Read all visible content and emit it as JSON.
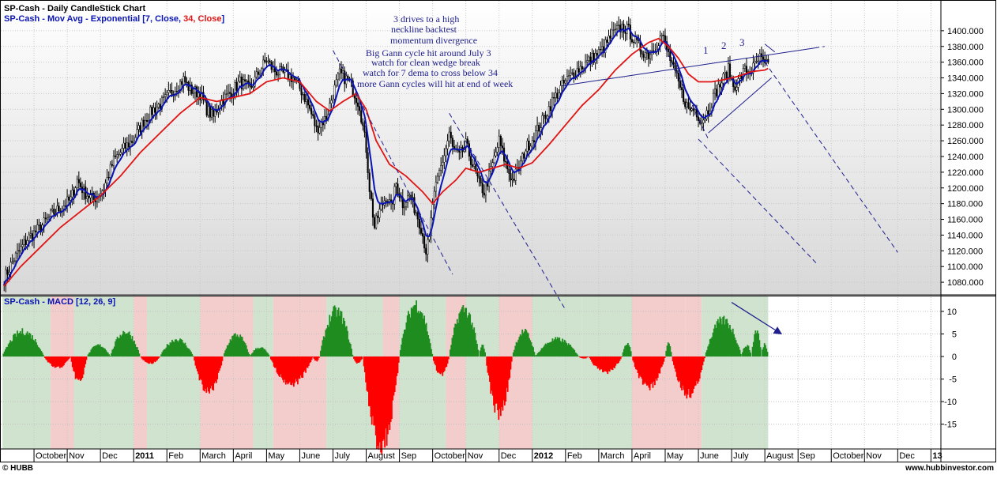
{
  "header": {
    "line1": "SP-Cash - Daily CandleStick Chart",
    "line2_prefix": "SP-Cash - Mov Avg - Exponential [7, Close, ",
    "line2_red": "34, Close",
    "line2_suffix": "]"
  },
  "annotations": [
    "3 drives to a high",
    "neckline backtest",
    "momentum divergence",
    "Big Gann cycle hit  around July 3",
    "watch for clean wedge break",
    "watch for 7 dema to cross below 34",
    "more Gann cycles will  hit at end of week"
  ],
  "wave_labels": [
    "1",
    "2",
    "3"
  ],
  "footer": {
    "left": "© HUBB",
    "right": "www.hubbinvestor.com"
  },
  "colors": {
    "ema_fast": "#0a14b4",
    "ema_slow": "#e11414",
    "macd_pos": "#1e8c1e",
    "macd_neg": "#ff0000",
    "shade_green": "#cfe3cf",
    "shade_red": "#f3cccc",
    "candle": "#000000"
  },
  "chart_data": [
    {
      "type": "line",
      "title": "SP-Cash - Daily CandleStick Chart",
      "subtitle": "SP-Cash - Mov Avg - Exponential [7, Close, 34, Close]",
      "ylim": [
        1065,
        1425
      ],
      "yticks": [
        1080,
        1100,
        1120,
        1140,
        1160,
        1180,
        1200,
        1220,
        1240,
        1260,
        1280,
        1300,
        1320,
        1340,
        1360,
        1380,
        1400
      ],
      "grid": true,
      "x_axis_labels": [
        {
          "label": "October",
          "m": 9
        },
        {
          "label": "Nov",
          "m": 10
        },
        {
          "label": "Dec",
          "m": 11
        },
        {
          "label": "2011",
          "m": 12
        },
        {
          "label": "Feb",
          "m": 13
        },
        {
          "label": "March",
          "m": 14
        },
        {
          "label": "April",
          "m": 15
        },
        {
          "label": "May",
          "m": 16
        },
        {
          "label": "June",
          "m": 17
        },
        {
          "label": "July",
          "m": 18
        },
        {
          "label": "August",
          "m": 19
        },
        {
          "label": "Sep",
          "m": 20
        },
        {
          "label": "October",
          "m": 21
        },
        {
          "label": "Nov",
          "m": 22
        },
        {
          "label": "Dec",
          "m": 23
        },
        {
          "label": "2012",
          "m": 24
        },
        {
          "label": "Feb",
          "m": 25
        },
        {
          "label": "March",
          "m": 26
        },
        {
          "label": "April",
          "m": 27
        },
        {
          "label": "May",
          "m": 28
        },
        {
          "label": "June",
          "m": 29
        },
        {
          "label": "July",
          "m": 30
        },
        {
          "label": "August",
          "m": 31
        },
        {
          "label": "Sep",
          "m": 32
        },
        {
          "label": "October",
          "m": 33
        },
        {
          "label": "Nov",
          "m": 34
        },
        {
          "label": "Dec",
          "m": 35
        },
        {
          "label": "13",
          "m": 36
        }
      ],
      "price_path": [
        [
          8.1,
          1085
        ],
        [
          8.4,
          1110
        ],
        [
          8.8,
          1135
        ],
        [
          9.2,
          1150
        ],
        [
          9.5,
          1165
        ],
        [
          9.8,
          1175
        ],
        [
          10.1,
          1185
        ],
        [
          10.3,
          1210
        ],
        [
          10.5,
          1195
        ],
        [
          10.8,
          1185
        ],
        [
          11.1,
          1200
        ],
        [
          11.4,
          1235
        ],
        [
          11.7,
          1250
        ],
        [
          12.0,
          1262
        ],
        [
          12.3,
          1285
        ],
        [
          12.6,
          1300
        ],
        [
          12.9,
          1310
        ],
        [
          13.2,
          1325
        ],
        [
          13.5,
          1338
        ],
        [
          13.7,
          1325
        ],
        [
          14.0,
          1320
        ],
        [
          14.2,
          1300
        ],
        [
          14.4,
          1290
        ],
        [
          14.6,
          1310
        ],
        [
          14.9,
          1320
        ],
        [
          15.2,
          1335
        ],
        [
          15.5,
          1325
        ],
        [
          15.8,
          1350
        ],
        [
          16.0,
          1363
        ],
        [
          16.2,
          1350
        ],
        [
          16.5,
          1345
        ],
        [
          16.8,
          1340
        ],
        [
          17.1,
          1320
        ],
        [
          17.3,
          1300
        ],
        [
          17.5,
          1275
        ],
        [
          17.8,
          1290
        ],
        [
          18.0,
          1320
        ],
        [
          18.2,
          1345
        ],
        [
          18.5,
          1335
        ],
        [
          18.8,
          1305
        ],
        [
          19.0,
          1250
        ],
        [
          19.1,
          1200
        ],
        [
          19.25,
          1150
        ],
        [
          19.4,
          1170
        ],
        [
          19.6,
          1190
        ],
        [
          19.75,
          1175
        ],
        [
          19.9,
          1205
        ],
        [
          20.1,
          1180
        ],
        [
          20.3,
          1190
        ],
        [
          20.5,
          1170
        ],
        [
          20.65,
          1150
        ],
        [
          20.8,
          1120
        ],
        [
          20.9,
          1135
        ],
        [
          21.0,
          1180
        ],
        [
          21.2,
          1220
        ],
        [
          21.4,
          1250
        ],
        [
          21.5,
          1270
        ],
        [
          21.6,
          1250
        ],
        [
          21.8,
          1240
        ],
        [
          22.0,
          1255
        ],
        [
          22.2,
          1230
        ],
        [
          22.4,
          1205
        ],
        [
          22.55,
          1195
        ],
        [
          22.7,
          1215
        ],
        [
          22.9,
          1245
        ],
        [
          23.0,
          1260
        ],
        [
          23.2,
          1230
        ],
        [
          23.4,
          1210
        ],
        [
          23.6,
          1225
        ],
        [
          23.8,
          1250
        ],
        [
          24.0,
          1262
        ],
        [
          24.3,
          1285
        ],
        [
          24.6,
          1310
        ],
        [
          24.9,
          1330
        ],
        [
          25.2,
          1345
        ],
        [
          25.5,
          1355
        ],
        [
          25.8,
          1365
        ],
        [
          26.1,
          1375
        ],
        [
          26.4,
          1395
        ],
        [
          26.7,
          1405
        ],
        [
          26.9,
          1400
        ],
        [
          27.1,
          1385
        ],
        [
          27.3,
          1375
        ],
        [
          27.5,
          1370
        ],
        [
          27.7,
          1380
        ],
        [
          27.9,
          1395
        ],
        [
          28.1,
          1370
        ],
        [
          28.3,
          1345
        ],
        [
          28.5,
          1320
        ],
        [
          28.7,
          1300
        ],
        [
          28.9,
          1300
        ],
        [
          29.1,
          1285
        ],
        [
          29.3,
          1300
        ],
        [
          29.5,
          1320
        ],
        [
          29.7,
          1335
        ],
        [
          29.9,
          1350
        ],
        [
          30.05,
          1330
        ],
        [
          30.2,
          1335
        ],
        [
          30.4,
          1350
        ],
        [
          30.55,
          1348
        ],
        [
          30.7,
          1355
        ],
        [
          30.85,
          1365
        ],
        [
          31.0,
          1355
        ],
        [
          31.1,
          1357
        ]
      ],
      "ema34_path": [
        [
          8.1,
          1075
        ],
        [
          8.6,
          1100
        ],
        [
          9.2,
          1125
        ],
        [
          9.8,
          1150
        ],
        [
          10.4,
          1170
        ],
        [
          11.0,
          1190
        ],
        [
          11.6,
          1215
        ],
        [
          12.2,
          1245
        ],
        [
          12.8,
          1270
        ],
        [
          13.4,
          1295
        ],
        [
          14.0,
          1315
        ],
        [
          14.5,
          1310
        ],
        [
          15.0,
          1315
        ],
        [
          15.5,
          1320
        ],
        [
          16.0,
          1335
        ],
        [
          16.5,
          1340
        ],
        [
          17.0,
          1335
        ],
        [
          17.5,
          1310
        ],
        [
          17.9,
          1298
        ],
        [
          18.3,
          1310
        ],
        [
          18.7,
          1320
        ],
        [
          19.0,
          1300
        ],
        [
          19.3,
          1260
        ],
        [
          19.7,
          1230
        ],
        [
          20.2,
          1215
        ],
        [
          20.7,
          1195
        ],
        [
          21.0,
          1180
        ],
        [
          21.3,
          1195
        ],
        [
          21.7,
          1210
        ],
        [
          22.0,
          1225
        ],
        [
          22.4,
          1220
        ],
        [
          22.8,
          1225
        ],
        [
          23.2,
          1230
        ],
        [
          23.6,
          1225
        ],
        [
          24.0,
          1232
        ],
        [
          24.5,
          1255
        ],
        [
          25.0,
          1280
        ],
        [
          25.5,
          1305
        ],
        [
          26.0,
          1325
        ],
        [
          26.5,
          1350
        ],
        [
          27.0,
          1370
        ],
        [
          27.5,
          1385
        ],
        [
          27.8,
          1390
        ],
        [
          28.1,
          1380
        ],
        [
          28.4,
          1365
        ],
        [
          28.7,
          1345
        ],
        [
          29.0,
          1335
        ],
        [
          29.4,
          1335
        ],
        [
          29.8,
          1338
        ],
        [
          30.2,
          1342
        ],
        [
          30.6,
          1348
        ],
        [
          31.0,
          1350
        ],
        [
          31.1,
          1352
        ]
      ],
      "overlay_lines": [
        {
          "p1": [
            18.0,
            1375
          ],
          "p2": [
            21.6,
            1090
          ],
          "dash": true
        },
        {
          "p1": [
            21.5,
            1295
          ],
          "p2": [
            25.0,
            1045
          ],
          "dash": true
        },
        {
          "p1": [
            28.0,
            1378
          ],
          "p2": [
            29.3,
            1262
          ],
          "dash": true
        },
        {
          "p1": [
            29.0,
            1262
          ],
          "p2": [
            32.6,
            1102
          ],
          "dash": true
        },
        {
          "p1": [
            31.0,
            1360
          ],
          "p2": [
            35.0,
            1118
          ],
          "dash": true
        },
        {
          "p1": [
            24.9,
            1330
          ],
          "p2": [
            32.5,
            1378
          ],
          "dash": false
        },
        {
          "p1": [
            32.5,
            1378
          ],
          "p2": [
            32.8,
            1380
          ],
          "dash": true
        },
        {
          "p1": [
            29.3,
            1270
          ],
          "p2": [
            31.2,
            1340
          ],
          "dash": false
        },
        {
          "p1": [
            31.0,
            1383
          ],
          "p2": [
            31.3,
            1373
          ],
          "dash": false
        }
      ]
    },
    {
      "type": "bar",
      "title": "SP-Cash - MACD [12, 26, 9]",
      "ylim": [
        -20.5,
        13.5
      ],
      "yticks": [
        -15,
        -10,
        -5,
        0,
        5,
        10
      ],
      "shading": [
        {
          "m0": 8.05,
          "m1": 9.5,
          "color": "green"
        },
        {
          "m0": 9.5,
          "m1": 10.2,
          "color": "red"
        },
        {
          "m0": 10.2,
          "m1": 12.0,
          "color": "green"
        },
        {
          "m0": 12.0,
          "m1": 12.4,
          "color": "red"
        },
        {
          "m0": 12.4,
          "m1": 14.0,
          "color": "green"
        },
        {
          "m0": 14.0,
          "m1": 15.6,
          "color": "red"
        },
        {
          "m0": 15.6,
          "m1": 16.2,
          "color": "green"
        },
        {
          "m0": 16.2,
          "m1": 17.8,
          "color": "red"
        },
        {
          "m0": 17.8,
          "m1": 19.5,
          "color": "green"
        },
        {
          "m0": 19.5,
          "m1": 20.0,
          "color": "red"
        },
        {
          "m0": 20.0,
          "m1": 21.4,
          "color": "green"
        },
        {
          "m0": 21.4,
          "m1": 22.0,
          "color": "red"
        },
        {
          "m0": 22.0,
          "m1": 23.0,
          "color": "green"
        },
        {
          "m0": 23.0,
          "m1": 24.0,
          "color": "red"
        },
        {
          "m0": 24.0,
          "m1": 25.5,
          "color": "green"
        },
        {
          "m0": 25.5,
          "m1": 27.0,
          "color": "green"
        },
        {
          "m0": 27.0,
          "m1": 28.0,
          "color": "red"
        },
        {
          "m0": 28.0,
          "m1": 28.6,
          "color": "red"
        },
        {
          "m0": 28.6,
          "m1": 29.1,
          "color": "red"
        },
        {
          "m0": 29.1,
          "m1": 31.1,
          "color": "green"
        }
      ],
      "histogram_humps": [
        {
          "m0": 8.05,
          "m1": 9.3,
          "peak": 5.5
        },
        {
          "m0": 9.3,
          "m1": 10.1,
          "peak": -2.5
        },
        {
          "m0": 10.1,
          "m1": 10.6,
          "peak": -5.5
        },
        {
          "m0": 10.6,
          "m1": 11.3,
          "peak": 2.5
        },
        {
          "m0": 11.3,
          "m1": 12.2,
          "peak": 5.5
        },
        {
          "m0": 12.2,
          "m1": 12.8,
          "peak": -1.5
        },
        {
          "m0": 12.8,
          "m1": 13.8,
          "peak": 3.8
        },
        {
          "m0": 13.8,
          "m1": 14.7,
          "peak": -7.5
        },
        {
          "m0": 14.7,
          "m1": 15.5,
          "peak": 4.8
        },
        {
          "m0": 15.5,
          "m1": 16.1,
          "peak": 2.0
        },
        {
          "m0": 16.1,
          "m1": 17.4,
          "peak": -6.0
        },
        {
          "m0": 17.4,
          "m1": 17.6,
          "peak": -1.0
        },
        {
          "m0": 17.6,
          "m1": 18.6,
          "peak": 10.0
        },
        {
          "m0": 18.6,
          "m1": 18.9,
          "peak": -1.5
        },
        {
          "m0": 18.9,
          "m1": 20.0,
          "peak": -19.5
        },
        {
          "m0": 20.0,
          "m1": 21.0,
          "peak": 11.5
        },
        {
          "m0": 21.0,
          "m1": 21.5,
          "peak": -4.0
        },
        {
          "m0": 21.5,
          "m1": 22.4,
          "peak": 10.5
        },
        {
          "m0": 22.4,
          "m1": 22.6,
          "peak": 2.5
        },
        {
          "m0": 22.6,
          "m1": 23.4,
          "peak": -12.5
        },
        {
          "m0": 23.4,
          "m1": 24.1,
          "peak": 5.5
        },
        {
          "m0": 24.1,
          "m1": 25.4,
          "peak": 3.8
        },
        {
          "m0": 25.4,
          "m1": 25.7,
          "peak": -0.5
        },
        {
          "m0": 25.7,
          "m1": 26.7,
          "peak": -3.5
        },
        {
          "m0": 26.7,
          "m1": 27.0,
          "peak": 3.0
        },
        {
          "m0": 27.0,
          "m1": 28.0,
          "peak": -6.8
        },
        {
          "m0": 28.0,
          "m1": 28.2,
          "peak": 3.0
        },
        {
          "m0": 28.2,
          "m1": 29.2,
          "peak": -8.3
        },
        {
          "m0": 29.2,
          "m1": 30.3,
          "peak": 8.0
        },
        {
          "m0": 30.3,
          "m1": 30.6,
          "peak": 2.5
        },
        {
          "m0": 30.6,
          "m1": 30.9,
          "peak": 5.8
        },
        {
          "m0": 30.9,
          "m1": 31.1,
          "peak": 2.8
        }
      ],
      "arrow": {
        "from": [
          30.0,
          12.0
        ],
        "to": [
          31.5,
          5.0
        ]
      }
    }
  ]
}
